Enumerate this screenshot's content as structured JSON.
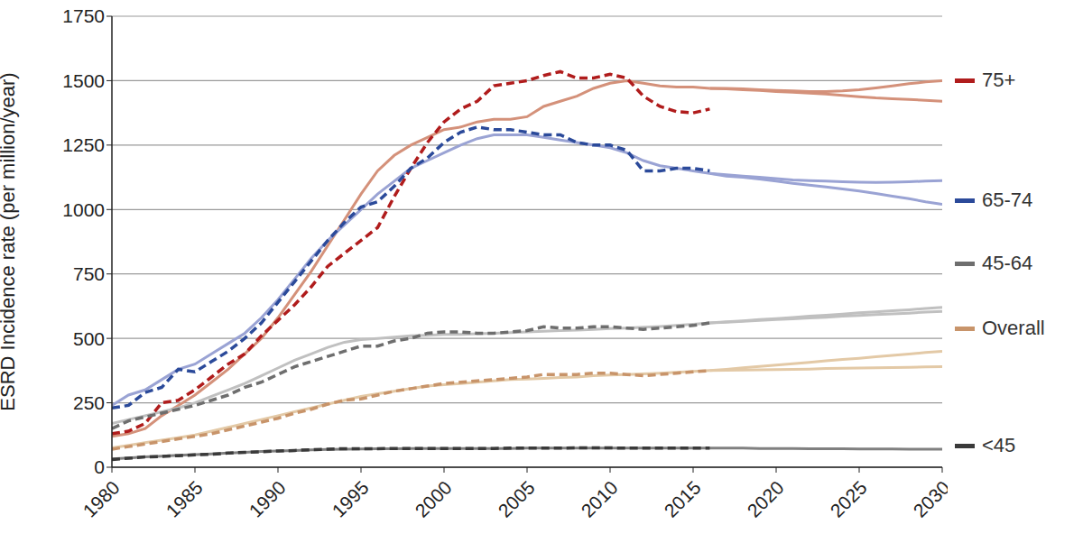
{
  "chart_data": {
    "type": "line",
    "y_label": "ESRD Incidence rate (per million/year)",
    "x": [
      1980,
      1981,
      1982,
      1983,
      1984,
      1985,
      1986,
      1987,
      1988,
      1989,
      1990,
      1991,
      1992,
      1993,
      1994,
      1995,
      1996,
      1997,
      1998,
      1999,
      2000,
      2001,
      2002,
      2003,
      2004,
      2005,
      2006,
      2007,
      2008,
      2009,
      2010,
      2011,
      2012,
      2013,
      2014,
      2015,
      2016,
      2017,
      2018,
      2019,
      2020,
      2021,
      2022,
      2023,
      2024,
      2025,
      2026,
      2027,
      2028,
      2029,
      2030
    ],
    "xlim": [
      1980,
      2030
    ],
    "xticks": [
      1980,
      1985,
      1990,
      1995,
      2000,
      2005,
      2010,
      2015,
      2020,
      2025,
      2030
    ],
    "ylim": [
      0,
      1750
    ],
    "yticks": [
      0,
      250,
      500,
      750,
      1000,
      1250,
      1500,
      1750
    ],
    "grid": true,
    "legend": "right",
    "series": [
      {
        "name": "75+",
        "color": "#b01c1c",
        "line_style": "dashed",
        "values": [
          130,
          140,
          170,
          250,
          260,
          300,
          350,
          400,
          440,
          510,
          570,
          630,
          700,
          780,
          830,
          880,
          930,
          1050,
          1160,
          1260,
          1340,
          1390,
          1420,
          1480,
          1490,
          1500,
          1520,
          1535,
          1510,
          1510,
          1525,
          1510,
          1440,
          1400,
          1380,
          1375,
          1390,
          null,
          null,
          null,
          null,
          null,
          null,
          null,
          null,
          null,
          null,
          null,
          null,
          null,
          null
        ]
      },
      {
        "name": "75+",
        "color": "#d4917a",
        "line_style": "solid",
        "values": [
          120,
          130,
          150,
          200,
          240,
          280,
          330,
          380,
          440,
          500,
          580,
          670,
          760,
          860,
          960,
          1060,
          1150,
          1210,
          1250,
          1280,
          1310,
          1320,
          1340,
          1350,
          1350,
          1360,
          1400,
          1420,
          1440,
          1470,
          1490,
          1500,
          1490,
          1480,
          1475,
          1475,
          1470,
          null,
          null,
          null,
          null,
          null,
          null,
          null,
          null,
          null,
          null,
          null,
          null,
          null,
          null
        ]
      },
      {
        "name": "75+",
        "color": "#d4917a",
        "line_style": "solid",
        "values": [
          null,
          null,
          null,
          null,
          null,
          null,
          null,
          null,
          null,
          null,
          null,
          null,
          null,
          null,
          null,
          null,
          null,
          null,
          null,
          null,
          null,
          null,
          null,
          null,
          null,
          null,
          null,
          null,
          null,
          null,
          null,
          null,
          null,
          null,
          null,
          null,
          1470,
          1470,
          1468,
          1465,
          1462,
          1460,
          1458,
          1458,
          1460,
          1465,
          1472,
          1480,
          1488,
          1495,
          1500
        ]
      },
      {
        "name": "75+",
        "color": "#d4917a",
        "line_style": "solid",
        "values": [
          null,
          null,
          null,
          null,
          null,
          null,
          null,
          null,
          null,
          null,
          null,
          null,
          null,
          null,
          null,
          null,
          null,
          null,
          null,
          null,
          null,
          null,
          null,
          null,
          null,
          null,
          null,
          null,
          null,
          null,
          null,
          null,
          null,
          null,
          null,
          null,
          1470,
          1468,
          1465,
          1462,
          1458,
          1455,
          1452,
          1448,
          1443,
          1438,
          1433,
          1430,
          1427,
          1424,
          1420
        ]
      },
      {
        "name": "65-74",
        "color": "#2b4a9a",
        "line_style": "dashed",
        "values": [
          230,
          240,
          290,
          310,
          380,
          370,
          410,
          450,
          500,
          560,
          640,
          720,
          800,
          880,
          950,
          1010,
          1030,
          1090,
          1160,
          1200,
          1260,
          1300,
          1320,
          1310,
          1310,
          1300,
          1290,
          1290,
          1260,
          1250,
          1250,
          1230,
          1150,
          1150,
          1160,
          1160,
          1150,
          null,
          null,
          null,
          null,
          null,
          null,
          null,
          null,
          null,
          null,
          null,
          null,
          null,
          null
        ]
      },
      {
        "name": "65-74",
        "color": "#9aa3d4",
        "line_style": "solid",
        "values": [
          240,
          280,
          300,
          340,
          380,
          400,
          440,
          480,
          520,
          580,
          650,
          730,
          810,
          880,
          940,
          1000,
          1060,
          1110,
          1160,
          1190,
          1220,
          1250,
          1275,
          1290,
          1290,
          1290,
          1280,
          1270,
          1260,
          1250,
          1240,
          1220,
          1190,
          1170,
          1160,
          1150,
          1140,
          null,
          null,
          null,
          null,
          null,
          null,
          null,
          null,
          null,
          null,
          null,
          null,
          null,
          null
        ]
      },
      {
        "name": "65-74",
        "color": "#9aa3d4",
        "line_style": "solid",
        "values": [
          null,
          null,
          null,
          null,
          null,
          null,
          null,
          null,
          null,
          null,
          null,
          null,
          null,
          null,
          null,
          null,
          null,
          null,
          null,
          null,
          null,
          null,
          null,
          null,
          null,
          null,
          null,
          null,
          null,
          null,
          null,
          null,
          null,
          null,
          null,
          null,
          1140,
          1135,
          1130,
          1125,
          1120,
          1115,
          1112,
          1110,
          1108,
          1106,
          1105,
          1106,
          1108,
          1110,
          1112
        ]
      },
      {
        "name": "65-74",
        "color": "#9aa3d4",
        "line_style": "solid",
        "values": [
          null,
          null,
          null,
          null,
          null,
          null,
          null,
          null,
          null,
          null,
          null,
          null,
          null,
          null,
          null,
          null,
          null,
          null,
          null,
          null,
          null,
          null,
          null,
          null,
          null,
          null,
          null,
          null,
          null,
          null,
          null,
          null,
          null,
          null,
          null,
          null,
          1140,
          1130,
          1125,
          1118,
          1110,
          1102,
          1095,
          1088,
          1080,
          1072,
          1062,
          1052,
          1042,
          1030,
          1020
        ]
      },
      {
        "name": "45-64",
        "color": "#6e6e6e",
        "line_style": "dashed",
        "values": [
          150,
          180,
          195,
          210,
          225,
          240,
          260,
          280,
          310,
          330,
          360,
          390,
          410,
          430,
          450,
          470,
          470,
          490,
          500,
          520,
          525,
          525,
          520,
          520,
          525,
          530,
          545,
          540,
          540,
          545,
          545,
          540,
          535,
          540,
          545,
          550,
          560,
          null,
          null,
          null,
          null,
          null,
          null,
          null,
          null,
          null,
          null,
          null,
          null,
          null,
          null
        ]
      },
      {
        "name": "45-64",
        "color": "#c0c0c0",
        "line_style": "solid",
        "values": [
          170,
          185,
          200,
          215,
          230,
          250,
          275,
          300,
          325,
          355,
          385,
          415,
          440,
          465,
          485,
          495,
          500,
          505,
          510,
          512,
          515,
          515,
          518,
          520,
          522,
          525,
          528,
          530,
          532,
          535,
          538,
          540,
          543,
          546,
          550,
          555,
          560,
          null,
          null,
          null,
          null,
          null,
          null,
          null,
          null,
          null,
          null,
          null,
          null,
          null,
          null
        ]
      },
      {
        "name": "45-64",
        "color": "#c0c0c0",
        "line_style": "solid",
        "values": [
          null,
          null,
          null,
          null,
          null,
          null,
          null,
          null,
          null,
          null,
          null,
          null,
          null,
          null,
          null,
          null,
          null,
          null,
          null,
          null,
          null,
          null,
          null,
          null,
          null,
          null,
          null,
          null,
          null,
          null,
          null,
          null,
          null,
          null,
          null,
          null,
          560,
          564,
          568,
          573,
          577,
          581,
          586,
          590,
          594,
          599,
          603,
          607,
          611,
          616,
          620
        ]
      },
      {
        "name": "45-64",
        "color": "#c0c0c0",
        "line_style": "solid",
        "values": [
          null,
          null,
          null,
          null,
          null,
          null,
          null,
          null,
          null,
          null,
          null,
          null,
          null,
          null,
          null,
          null,
          null,
          null,
          null,
          null,
          null,
          null,
          null,
          null,
          null,
          null,
          null,
          null,
          null,
          null,
          null,
          null,
          null,
          null,
          null,
          null,
          560,
          563,
          566,
          570,
          573,
          576,
          579,
          582,
          586,
          589,
          592,
          595,
          598,
          602,
          605
        ]
      },
      {
        "name": "Overall",
        "color": "#c8946a",
        "line_style": "dashed",
        "values": [
          70,
          80,
          90,
          100,
          110,
          120,
          130,
          145,
          160,
          175,
          190,
          210,
          225,
          245,
          260,
          265,
          280,
          295,
          305,
          315,
          325,
          330,
          335,
          340,
          345,
          350,
          360,
          360,
          360,
          365,
          365,
          360,
          355,
          360,
          365,
          370,
          375,
          null,
          null,
          null,
          null,
          null,
          null,
          null,
          null,
          null,
          null,
          null,
          null,
          null,
          null
        ]
      },
      {
        "name": "Overall",
        "color": "#e3c9a6",
        "line_style": "solid",
        "values": [
          75,
          85,
          95,
          105,
          115,
          125,
          140,
          155,
          170,
          185,
          200,
          215,
          230,
          245,
          260,
          275,
          285,
          295,
          305,
          315,
          320,
          325,
          330,
          335,
          340,
          342,
          345,
          348,
          350,
          355,
          358,
          360,
          362,
          365,
          368,
          372,
          375,
          null,
          null,
          null,
          null,
          null,
          null,
          null,
          null,
          null,
          null,
          null,
          null,
          null,
          null
        ]
      },
      {
        "name": "Overall",
        "color": "#e3c9a6",
        "line_style": "solid",
        "values": [
          null,
          null,
          null,
          null,
          null,
          null,
          null,
          null,
          null,
          null,
          null,
          null,
          null,
          null,
          null,
          null,
          null,
          null,
          null,
          null,
          null,
          null,
          null,
          null,
          null,
          null,
          null,
          null,
          null,
          null,
          null,
          null,
          null,
          null,
          null,
          null,
          375,
          380,
          386,
          391,
          396,
          402,
          407,
          413,
          418,
          423,
          429,
          434,
          439,
          445,
          450
        ]
      },
      {
        "name": "Overall",
        "color": "#e3c9a6",
        "line_style": "solid",
        "values": [
          null,
          null,
          null,
          null,
          null,
          null,
          null,
          null,
          null,
          null,
          null,
          null,
          null,
          null,
          null,
          null,
          null,
          null,
          null,
          null,
          null,
          null,
          null,
          null,
          null,
          null,
          null,
          null,
          null,
          null,
          null,
          null,
          null,
          null,
          null,
          null,
          375,
          376,
          377,
          378,
          379,
          380,
          381,
          383,
          384,
          385,
          386,
          387,
          388,
          389,
          390
        ]
      },
      {
        "name": "<45",
        "color": "#3a3a3a",
        "line_style": "dashed",
        "values": [
          30,
          35,
          40,
          42,
          45,
          48,
          50,
          55,
          58,
          60,
          63,
          65,
          68,
          70,
          72,
          72,
          72,
          73,
          73,
          73,
          73,
          73,
          73,
          73,
          74,
          74,
          74,
          74,
          75,
          75,
          75,
          74,
          74,
          74,
          74,
          74,
          74,
          null,
          null,
          null,
          null,
          null,
          null,
          null,
          null,
          null,
          null,
          null,
          null,
          null,
          null
        ]
      },
      {
        "name": "<45",
        "color": "#808080",
        "line_style": "solid",
        "values": [
          32,
          36,
          40,
          43,
          46,
          49,
          52,
          55,
          58,
          61,
          63,
          65,
          67,
          69,
          70,
          71,
          72,
          72,
          73,
          73,
          73,
          73,
          73,
          73,
          73,
          74,
          74,
          74,
          74,
          74,
          74,
          74,
          74,
          74,
          74,
          74,
          74,
          74,
          74,
          73,
          73,
          73,
          72,
          72,
          72,
          71,
          71,
          71,
          70,
          70,
          70
        ]
      }
    ]
  }
}
